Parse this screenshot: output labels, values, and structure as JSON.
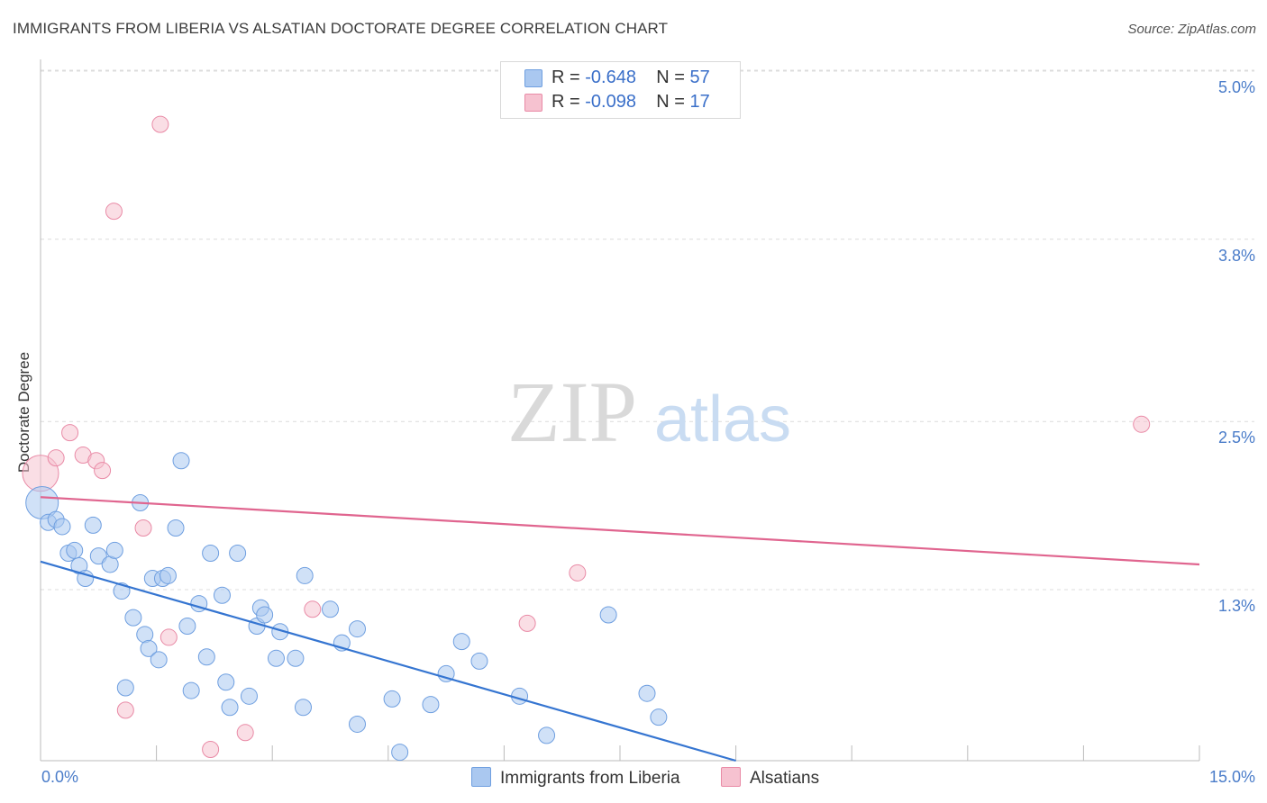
{
  "header": {
    "title": "IMMIGRANTS FROM LIBERIA VS ALSATIAN DOCTORATE DEGREE CORRELATION CHART",
    "source": "Source: ZipAtlas.com"
  },
  "legend": {
    "rows": [
      {
        "r_label": "R =",
        "r_value": "-0.648",
        "n_label": "N =",
        "n_value": "57"
      },
      {
        "r_label": "R =",
        "r_value": "-0.098",
        "n_label": "N =",
        "n_value": "17"
      }
    ]
  },
  "watermark": {
    "zip": "ZIP",
    "atlas": "atlas"
  },
  "colors": {
    "blue_fill": "#aac8f0",
    "blue_stroke": "#6f9fe0",
    "blue_line": "#3575d1",
    "pink_fill": "#f6c2d0",
    "pink_stroke": "#e98aa6",
    "pink_line": "#e0658f",
    "tick_label": "#4a7cc9",
    "grid": "#dcdcdc"
  },
  "chart_data": {
    "type": "scatter",
    "title": "IMMIGRANTS FROM LIBERIA VS ALSATIAN DOCTORATE DEGREE CORRELATION CHART",
    "xlabel": "",
    "ylabel": "Doctorate Degree",
    "xlim": [
      0,
      15
    ],
    "ylim": [
      0,
      5.1
    ],
    "x_tick_labels": [
      "0.0%",
      "15.0%"
    ],
    "y_ticks": [
      1.3,
      2.5,
      3.8,
      5.0
    ],
    "y_tick_labels": [
      "1.3%",
      "2.5%",
      "3.8%",
      "5.0%"
    ],
    "grid": "horizontal dashed",
    "legend_position": "top-center",
    "series": [
      {
        "name": "Immigrants from Liberia",
        "color": "#aac8f0",
        "points": [
          [
            0.02,
            1.92
          ],
          [
            0.1,
            1.78
          ],
          [
            0.2,
            1.8
          ],
          [
            0.28,
            1.75
          ],
          [
            0.36,
            1.56
          ],
          [
            0.44,
            1.58
          ],
          [
            0.5,
            1.47
          ],
          [
            0.58,
            1.38
          ],
          [
            0.68,
            1.76
          ],
          [
            0.75,
            1.54
          ],
          [
            0.9,
            1.48
          ],
          [
            0.96,
            1.58
          ],
          [
            1.05,
            1.29
          ],
          [
            1.2,
            1.1
          ],
          [
            1.29,
            1.92
          ],
          [
            1.35,
            0.98
          ],
          [
            1.4,
            0.88
          ],
          [
            1.45,
            1.38
          ],
          [
            1.53,
            0.8
          ],
          [
            1.58,
            1.38
          ],
          [
            1.65,
            1.4
          ],
          [
            1.75,
            1.74
          ],
          [
            1.82,
            2.22
          ],
          [
            1.9,
            1.04
          ],
          [
            1.95,
            0.58
          ],
          [
            2.05,
            1.2
          ],
          [
            2.15,
            0.82
          ],
          [
            2.2,
            1.56
          ],
          [
            2.4,
            0.64
          ],
          [
            2.35,
            1.26
          ],
          [
            2.45,
            0.46
          ],
          [
            2.55,
            1.56
          ],
          [
            2.7,
            0.54
          ],
          [
            2.8,
            1.04
          ],
          [
            2.85,
            1.17
          ],
          [
            2.9,
            1.12
          ],
          [
            3.1,
            1.0
          ],
          [
            3.05,
            0.81
          ],
          [
            3.3,
            0.81
          ],
          [
            3.4,
            0.46
          ],
          [
            3.42,
            1.4
          ],
          [
            3.75,
            1.16
          ],
          [
            3.9,
            0.92
          ],
          [
            4.1,
            0.34
          ],
          [
            4.1,
            1.02
          ],
          [
            4.55,
            0.52
          ],
          [
            4.65,
            0.14
          ],
          [
            5.05,
            0.48
          ],
          [
            5.25,
            0.7
          ],
          [
            5.45,
            0.93
          ],
          [
            5.68,
            0.79
          ],
          [
            6.2,
            0.54
          ],
          [
            6.55,
            0.26
          ],
          [
            7.35,
            1.12
          ],
          [
            7.85,
            0.56
          ],
          [
            8.0,
            0.39
          ],
          [
            1.1,
            0.6
          ]
        ],
        "trend": {
          "x": [
            0,
            9.0
          ],
          "y": [
            1.5,
            0.0
          ]
        }
      },
      {
        "name": "Alsatians",
        "color": "#f6c2d0",
        "points": [
          [
            0.0,
            2.13
          ],
          [
            0.2,
            2.24
          ],
          [
            0.38,
            2.42
          ],
          [
            0.55,
            2.26
          ],
          [
            0.72,
            2.22
          ],
          [
            0.8,
            2.15
          ],
          [
            0.95,
            4.0
          ],
          [
            1.1,
            0.44
          ],
          [
            1.33,
            1.74
          ],
          [
            1.55,
            4.62
          ],
          [
            1.66,
            0.96
          ],
          [
            2.2,
            0.16
          ],
          [
            2.65,
            0.28
          ],
          [
            3.52,
            1.16
          ],
          [
            6.3,
            1.06
          ],
          [
            6.95,
            1.42
          ],
          [
            14.25,
            2.48
          ]
        ],
        "trend": {
          "x": [
            0,
            15.0
          ],
          "y": [
            1.96,
            1.48
          ]
        }
      }
    ]
  },
  "bottom_legend": {
    "items": [
      {
        "label": "Immigrants from Liberia"
      },
      {
        "label": "Alsatians"
      }
    ]
  }
}
